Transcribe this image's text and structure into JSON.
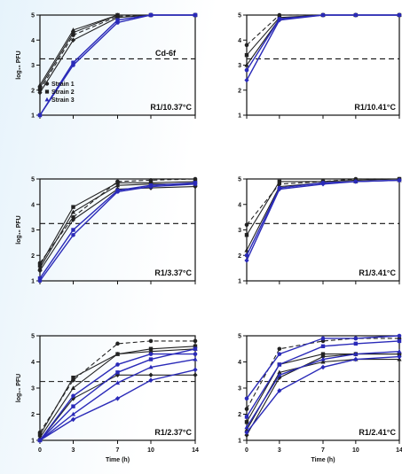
{
  "figure": {
    "colors": {
      "black": "#222222",
      "blue": "#2a2ab8",
      "ref": "#111111"
    }
  },
  "chart_data": [
    {
      "type": "line",
      "title": "R1/10.37°C",
      "xlabel": "",
      "ylabel": "log₁₀ PFU",
      "ylim": [
        1,
        5
      ],
      "xlim": [
        0,
        14
      ],
      "x_ticks": [
        0,
        3,
        7,
        10,
        14
      ],
      "y_ticks": [
        1,
        2,
        3,
        4,
        5
      ],
      "reference_line": 3.25,
      "annotation": "Cd-6f",
      "legend": {
        "entries": [
          "Strain 1",
          "Strain 2",
          "Strain 3"
        ],
        "placement": "center-left"
      },
      "series": [
        {
          "x": [
            0,
            3,
            7,
            10,
            14
          ],
          "values": [
            2.0,
            4.2,
            4.95,
            5.0,
            5.0
          ],
          "color": "black",
          "dashed": true
        },
        {
          "x": [
            0,
            3,
            7,
            10,
            14
          ],
          "values": [
            2.1,
            4.3,
            5.0,
            5.0,
            5.0
          ],
          "color": "black",
          "dashed": false
        },
        {
          "x": [
            0,
            3,
            7,
            10,
            14
          ],
          "values": [
            2.2,
            4.4,
            5.0,
            5.0,
            5.0
          ],
          "color": "black",
          "dashed": false
        },
        {
          "x": [
            0,
            3,
            7,
            10,
            14
          ],
          "values": [
            1.9,
            4.0,
            4.9,
            5.0,
            5.0
          ],
          "color": "black",
          "dashed": false
        },
        {
          "x": [
            0,
            3,
            7,
            10,
            14
          ],
          "values": [
            1.0,
            3.0,
            4.7,
            5.0,
            5.0
          ],
          "color": "blue",
          "dashed": false
        },
        {
          "x": [
            0,
            3,
            7,
            10,
            14
          ],
          "values": [
            1.0,
            3.1,
            4.8,
            5.0,
            5.0
          ],
          "color": "blue",
          "dashed": false
        }
      ]
    },
    {
      "type": "line",
      "title": "R1/10.41°C",
      "xlabel": "",
      "ylabel": "",
      "ylim": [
        1,
        5
      ],
      "xlim": [
        0,
        14
      ],
      "x_ticks": [
        0,
        3,
        7,
        10,
        14
      ],
      "y_ticks": [
        1,
        2,
        3,
        4,
        5
      ],
      "reference_line": 3.25,
      "series": [
        {
          "x": [
            0,
            3,
            7,
            10,
            14
          ],
          "values": [
            3.8,
            5.0,
            5.0,
            5.0,
            5.0
          ],
          "color": "black",
          "dashed": true
        },
        {
          "x": [
            0,
            3,
            7,
            10,
            14
          ],
          "values": [
            3.4,
            4.9,
            5.0,
            5.0,
            5.0
          ],
          "color": "black",
          "dashed": false
        },
        {
          "x": [
            0,
            3,
            7,
            10,
            14
          ],
          "values": [
            3.0,
            4.85,
            5.0,
            5.0,
            5.0
          ],
          "color": "black",
          "dashed": false
        },
        {
          "x": [
            0,
            3,
            7,
            10,
            14
          ],
          "values": [
            2.4,
            4.8,
            5.0,
            5.0,
            5.0
          ],
          "color": "blue",
          "dashed": false
        },
        {
          "x": [
            0,
            3,
            7,
            10,
            14
          ],
          "values": [
            2.8,
            4.85,
            5.0,
            5.0,
            5.0
          ],
          "color": "blue",
          "dashed": false
        }
      ]
    },
    {
      "type": "line",
      "title": "R1/3.37°C",
      "xlabel": "",
      "ylabel": "log₁₀ PFU",
      "ylim": [
        1,
        5
      ],
      "xlim": [
        0,
        14
      ],
      "x_ticks": [
        0,
        3,
        7,
        10,
        14
      ],
      "y_ticks": [
        1,
        2,
        3,
        4,
        5
      ],
      "reference_line": 3.25,
      "series": [
        {
          "x": [
            0,
            3,
            7,
            10,
            14
          ],
          "values": [
            1.7,
            3.5,
            4.9,
            4.95,
            5.0
          ],
          "color": "black",
          "dashed": true
        },
        {
          "x": [
            0,
            3,
            7,
            10,
            14
          ],
          "values": [
            1.6,
            3.9,
            4.85,
            4.85,
            4.9
          ],
          "color": "black",
          "dashed": false
        },
        {
          "x": [
            0,
            3,
            7,
            10,
            14
          ],
          "values": [
            1.5,
            3.7,
            4.75,
            4.8,
            4.8
          ],
          "color": "black",
          "dashed": false
        },
        {
          "x": [
            0,
            3,
            7,
            10,
            14
          ],
          "values": [
            1.4,
            3.4,
            4.6,
            4.65,
            4.7
          ],
          "color": "black",
          "dashed": false
        },
        {
          "x": [
            0,
            3,
            7,
            10,
            14
          ],
          "values": [
            1.0,
            2.8,
            4.5,
            4.7,
            4.8
          ],
          "color": "blue",
          "dashed": false
        },
        {
          "x": [
            0,
            3,
            7,
            10,
            14
          ],
          "values": [
            1.1,
            3.0,
            4.55,
            4.75,
            4.85
          ],
          "color": "blue",
          "dashed": false
        }
      ]
    },
    {
      "type": "line",
      "title": "R1/3.41°C",
      "xlabel": "",
      "ylabel": "",
      "ylim": [
        1,
        5
      ],
      "xlim": [
        0,
        14
      ],
      "x_ticks": [
        0,
        3,
        7,
        10,
        14
      ],
      "y_ticks": [
        1,
        2,
        3,
        4,
        5
      ],
      "reference_line": 3.25,
      "series": [
        {
          "x": [
            0,
            3,
            7,
            10,
            14
          ],
          "values": [
            3.2,
            4.8,
            4.9,
            5.0,
            5.0
          ],
          "color": "black",
          "dashed": true
        },
        {
          "x": [
            0,
            3,
            7,
            10,
            14
          ],
          "values": [
            2.8,
            4.9,
            4.9,
            4.95,
            5.0
          ],
          "color": "black",
          "dashed": false
        },
        {
          "x": [
            0,
            3,
            7,
            10,
            14
          ],
          "values": [
            2.2,
            4.7,
            4.85,
            4.9,
            4.95
          ],
          "color": "black",
          "dashed": false
        },
        {
          "x": [
            0,
            3,
            7,
            10,
            14
          ],
          "values": [
            1.8,
            4.6,
            4.8,
            4.9,
            4.95
          ],
          "color": "blue",
          "dashed": false
        },
        {
          "x": [
            0,
            3,
            7,
            10,
            14
          ],
          "values": [
            2.0,
            4.65,
            4.85,
            4.9,
            4.95
          ],
          "color": "blue",
          "dashed": false
        }
      ]
    },
    {
      "type": "line",
      "title": "R1/2.37°C",
      "xlabel": "Time (h)",
      "ylabel": "log₁₀ PFU",
      "ylim": [
        1,
        5
      ],
      "xlim": [
        0,
        14
      ],
      "x_ticks": [
        0,
        3,
        7,
        10,
        14
      ],
      "y_ticks": [
        1,
        2,
        3,
        4,
        5
      ],
      "reference_line": 3.25,
      "series": [
        {
          "x": [
            0,
            3,
            7,
            10,
            14
          ],
          "values": [
            1.3,
            3.3,
            4.7,
            4.8,
            4.8
          ],
          "color": "black",
          "dashed": true
        },
        {
          "x": [
            0,
            3,
            7,
            10,
            14
          ],
          "values": [
            1.2,
            3.4,
            4.3,
            4.5,
            4.6
          ],
          "color": "black",
          "dashed": false
        },
        {
          "x": [
            0,
            3,
            7,
            10,
            14
          ],
          "values": [
            1.1,
            3.0,
            4.3,
            4.4,
            4.5
          ],
          "color": "black",
          "dashed": false
        },
        {
          "x": [
            0,
            3,
            7,
            10,
            14
          ],
          "values": [
            1.0,
            2.6,
            3.5,
            3.5,
            3.5
          ],
          "color": "black",
          "dashed": false
        },
        {
          "x": [
            0,
            3,
            7,
            10,
            14
          ],
          "values": [
            1.0,
            2.7,
            3.9,
            4.3,
            4.3
          ],
          "color": "blue",
          "dashed": false
        },
        {
          "x": [
            0,
            3,
            7,
            10,
            14
          ],
          "values": [
            1.0,
            2.3,
            3.6,
            4.1,
            4.5
          ],
          "color": "blue",
          "dashed": false
        },
        {
          "x": [
            0,
            3,
            7,
            10,
            14
          ],
          "values": [
            1.0,
            2.0,
            3.2,
            3.8,
            4.1
          ],
          "color": "blue",
          "dashed": false
        },
        {
          "x": [
            0,
            3,
            7,
            10,
            14
          ],
          "values": [
            1.0,
            1.8,
            2.6,
            3.3,
            3.7
          ],
          "color": "blue",
          "dashed": false
        }
      ]
    },
    {
      "type": "line",
      "title": "R1/2.41°C",
      "xlabel": "Time (h)",
      "ylabel": "",
      "ylim": [
        1,
        5
      ],
      "xlim": [
        0,
        14
      ],
      "x_ticks": [
        0,
        3,
        7,
        10,
        14
      ],
      "y_ticks": [
        1,
        2,
        3,
        4,
        5
      ],
      "reference_line": 3.25,
      "series": [
        {
          "x": [
            0,
            3,
            7,
            10,
            14
          ],
          "values": [
            2.2,
            4.5,
            4.8,
            4.9,
            4.9
          ],
          "color": "black",
          "dashed": true
        },
        {
          "x": [
            0,
            3,
            7,
            10,
            14
          ],
          "values": [
            1.7,
            3.9,
            4.3,
            4.3,
            4.3
          ],
          "color": "black",
          "dashed": false
        },
        {
          "x": [
            0,
            3,
            7,
            10,
            14
          ],
          "values": [
            1.4,
            3.6,
            4.0,
            4.1,
            4.1
          ],
          "color": "black",
          "dashed": false
        },
        {
          "x": [
            0,
            3,
            7,
            10,
            14
          ],
          "values": [
            1.2,
            3.4,
            4.2,
            4.3,
            4.3
          ],
          "color": "black",
          "dashed": false
        },
        {
          "x": [
            0,
            3,
            7,
            10,
            14
          ],
          "values": [
            2.6,
            4.3,
            4.9,
            4.9,
            5.0
          ],
          "color": "blue",
          "dashed": false
        },
        {
          "x": [
            0,
            3,
            7,
            10,
            14
          ],
          "values": [
            1.9,
            3.9,
            4.6,
            4.7,
            4.8
          ],
          "color": "blue",
          "dashed": false
        },
        {
          "x": [
            0,
            3,
            7,
            10,
            14
          ],
          "values": [
            1.5,
            3.5,
            4.1,
            4.3,
            4.4
          ],
          "color": "blue",
          "dashed": false
        },
        {
          "x": [
            0,
            3,
            7,
            10,
            14
          ],
          "values": [
            1.3,
            2.9,
            3.8,
            4.1,
            4.2
          ],
          "color": "blue",
          "dashed": false
        }
      ]
    }
  ]
}
